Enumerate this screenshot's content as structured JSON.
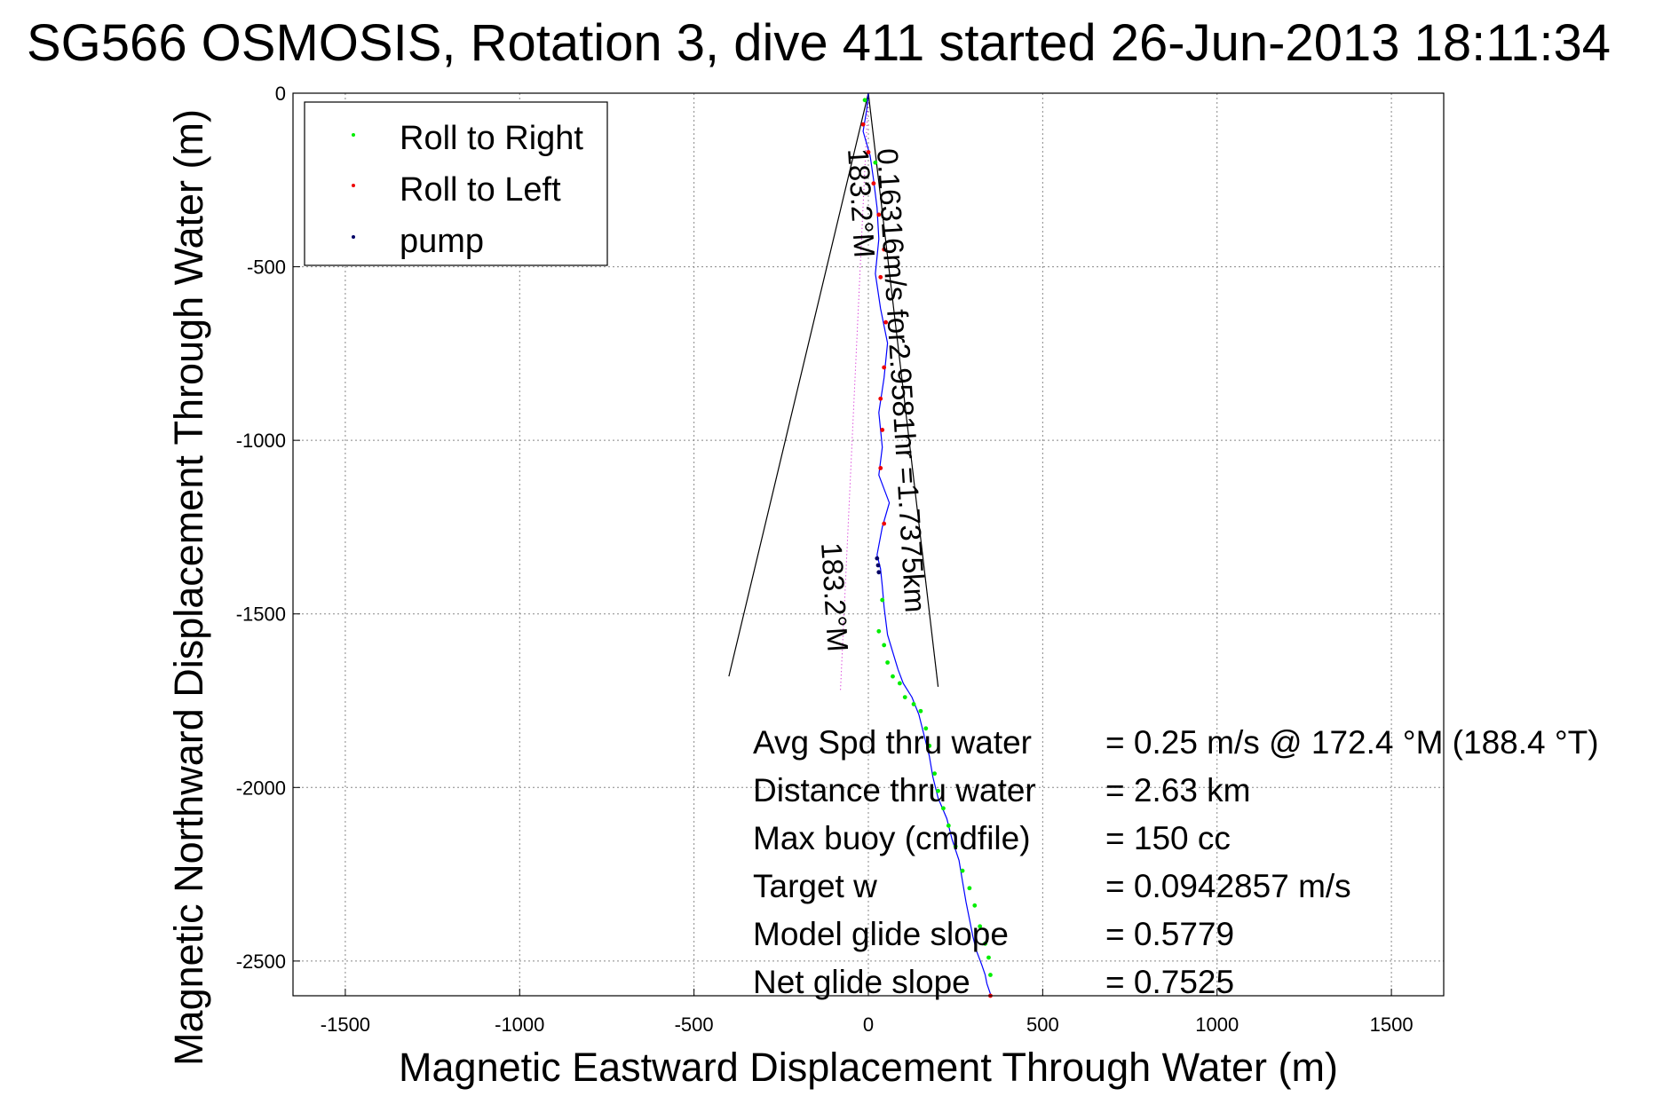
{
  "chart_data": {
    "type": "scatter",
    "title": "SG566 OSMOSIS, Rotation 3, dive 411 started 26-Jun-2013 18:11:34",
    "xlabel": "Magnetic Eastward Displacement Through Water (m)",
    "ylabel": "Magnetic Northward Displacement Through Water (m)",
    "xlim": [
      -1650,
      1650
    ],
    "ylim": [
      -2600,
      0
    ],
    "xticks": [
      -1500,
      -1000,
      -500,
      0,
      500,
      1000,
      1500
    ],
    "yticks": [
      0,
      -500,
      -1000,
      -1500,
      -2000,
      -2500
    ],
    "grid": true,
    "legend": {
      "placement": "top-left",
      "entries": [
        {
          "label": "Roll to Right",
          "color": "#00ee00"
        },
        {
          "label": "Roll to Left",
          "color": "#ee0000"
        },
        {
          "label": "pump",
          "color": "#000066"
        }
      ]
    },
    "track": {
      "color": "#0000ff",
      "x": [
        0,
        -5,
        -15,
        5,
        15,
        25,
        30,
        20,
        35,
        55,
        45,
        30,
        40,
        30,
        60,
        40,
        25,
        35,
        40,
        45,
        55,
        70,
        85,
        100,
        125,
        145,
        160,
        175,
        185,
        200,
        225,
        240,
        260,
        270,
        280,
        290,
        300,
        310,
        325,
        335,
        340,
        345,
        350,
        350
      ],
      "y": [
        0,
        -50,
        -110,
        -180,
        -250,
        -330,
        -420,
        -520,
        -620,
        -720,
        -820,
        -920,
        -1020,
        -1100,
        -1180,
        -1250,
        -1330,
        -1370,
        -1420,
        -1480,
        -1560,
        -1610,
        -1660,
        -1700,
        -1740,
        -1790,
        -1850,
        -1910,
        -1970,
        -2030,
        -2090,
        -2150,
        -2210,
        -2270,
        -2330,
        -2380,
        -2430,
        -2470,
        -2510,
        -2540,
        -2565,
        -2580,
        -2595,
        -2600
      ]
    },
    "roll_right_points": {
      "x": [
        -10,
        20,
        40,
        30,
        45,
        55,
        70,
        90,
        105,
        130,
        150,
        165,
        175,
        190,
        200,
        215,
        230,
        250,
        270,
        290,
        305,
        320,
        335,
        345,
        350
      ],
      "y": [
        -20,
        -200,
        -1460,
        -1550,
        -1590,
        -1640,
        -1680,
        -1700,
        -1740,
        -1760,
        -1780,
        -1830,
        -1880,
        -1960,
        -2010,
        -2060,
        -2110,
        -2170,
        -2240,
        -2290,
        -2340,
        -2400,
        -2450,
        -2490,
        -2540
      ]
    },
    "roll_left_points": {
      "x": [
        -15,
        0,
        15,
        30,
        45,
        35,
        50,
        45,
        35,
        40,
        35,
        45,
        350
      ],
      "y": [
        -90,
        -170,
        -260,
        -350,
        -450,
        -530,
        -660,
        -790,
        -880,
        -970,
        -1080,
        -1240,
        -2600
      ]
    },
    "pump_points": {
      "x": [
        25,
        28,
        30
      ],
      "y": [
        -1340,
        -1360,
        -1380
      ]
    },
    "cone": {
      "apex": [
        0,
        0
      ],
      "left_end": [
        -400,
        -1680
      ],
      "right_end": [
        200,
        -1710
      ]
    },
    "vector_line": {
      "from": [
        0,
        0
      ],
      "to": [
        -80,
        -1720
      ]
    },
    "rotated_labels": [
      "0.16316m/s for2.9581hr =1.7375km",
      "183.2°M",
      "183.2°M"
    ],
    "stats": [
      {
        "label": "Avg Spd thru water",
        "value": "=  0.25 m/s @ 172.4 °M (188.4 °T)"
      },
      {
        "label": "Distance thru water",
        "value": "=  2.63 km"
      },
      {
        "label": "Max buoy (cmdfile)",
        "value": "= 150 cc"
      },
      {
        "label": "Target w",
        "value": "= 0.0942857 m/s"
      },
      {
        "label": "Model glide slope",
        "value": "= 0.5779"
      },
      {
        "label": "Net glide slope",
        "value": "= 0.7525"
      }
    ]
  }
}
